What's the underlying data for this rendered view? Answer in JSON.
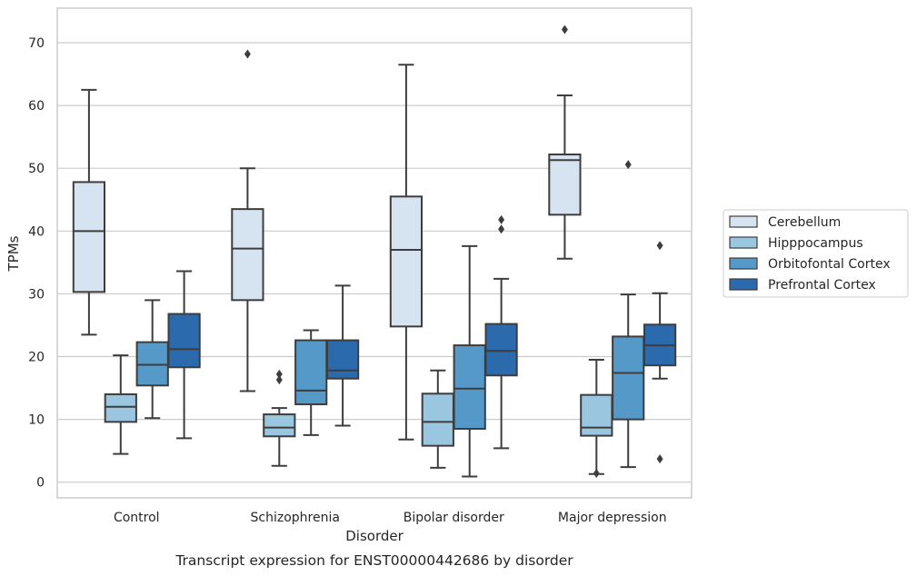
{
  "chart_data": {
    "type": "box",
    "caption": "Transcript expression for ENST00000442686 by disorder",
    "xlabel": "Disorder",
    "ylabel": "TPMs",
    "ylim": [
      -2.5,
      75.5
    ],
    "yticks": [
      0,
      10,
      20,
      30,
      40,
      50,
      60,
      70
    ],
    "grid": "horizontal",
    "legend_position": "right",
    "categories": [
      "Control",
      "Schizophrenia",
      "Bipolar disorder",
      "Major depression"
    ],
    "series": [
      {
        "name": "Cerebellum",
        "color": "#d6e4f2",
        "boxes": [
          {
            "whislo": 23.5,
            "q1": 30.3,
            "med": 40.0,
            "q3": 47.8,
            "whishi": 62.5,
            "fliers": []
          },
          {
            "whislo": 14.5,
            "q1": 29.0,
            "med": 37.2,
            "q3": 43.5,
            "whishi": 50.0,
            "fliers": [
              68.2
            ]
          },
          {
            "whislo": 6.8,
            "q1": 24.8,
            "med": 37.0,
            "q3": 45.5,
            "whishi": 66.5,
            "fliers": []
          },
          {
            "whislo": 35.6,
            "q1": 42.6,
            "med": 51.3,
            "q3": 52.2,
            "whishi": 61.6,
            "fliers": [
              72.1
            ]
          }
        ]
      },
      {
        "name": "Hipppocampus",
        "color": "#9ac6e0",
        "boxes": [
          {
            "whislo": 4.5,
            "q1": 9.6,
            "med": 12.0,
            "q3": 14.0,
            "whishi": 20.2,
            "fliers": []
          },
          {
            "whislo": 2.6,
            "q1": 7.3,
            "med": 8.7,
            "q3": 10.8,
            "whishi": 11.8,
            "fliers": [
              16.3,
              17.2
            ]
          },
          {
            "whislo": 2.3,
            "q1": 5.8,
            "med": 9.6,
            "q3": 14.1,
            "whishi": 17.8,
            "fliers": []
          },
          {
            "whislo": 1.3,
            "q1": 7.4,
            "med": 8.7,
            "q3": 13.9,
            "whishi": 19.5,
            "fliers": [
              1.4
            ]
          }
        ]
      },
      {
        "name": "Orbitofontal Cortex",
        "color": "#5599c9",
        "boxes": [
          {
            "whislo": 10.2,
            "q1": 15.4,
            "med": 18.7,
            "q3": 22.3,
            "whishi": 29.0,
            "fliers": []
          },
          {
            "whislo": 7.5,
            "q1": 12.4,
            "med": 14.6,
            "q3": 22.6,
            "whishi": 24.2,
            "fliers": []
          },
          {
            "whislo": 0.9,
            "q1": 8.5,
            "med": 14.9,
            "q3": 21.8,
            "whishi": 37.6,
            "fliers": []
          },
          {
            "whislo": 2.4,
            "q1": 10.0,
            "med": 17.4,
            "q3": 23.2,
            "whishi": 29.9,
            "fliers": [
              50.6
            ]
          }
        ]
      },
      {
        "name": "Prefrontal Cortex",
        "color": "#2b6aad",
        "boxes": [
          {
            "whislo": 7.0,
            "q1": 18.3,
            "med": 21.2,
            "q3": 26.8,
            "whishi": 33.6,
            "fliers": []
          },
          {
            "whislo": 9.0,
            "q1": 16.5,
            "med": 17.8,
            "q3": 22.6,
            "whishi": 31.3,
            "fliers": []
          },
          {
            "whislo": 5.4,
            "q1": 17.0,
            "med": 20.9,
            "q3": 25.2,
            "whishi": 32.4,
            "fliers": [
              40.3,
              41.8
            ]
          },
          {
            "whislo": 16.5,
            "q1": 18.6,
            "med": 21.8,
            "q3": 25.1,
            "whishi": 30.1,
            "fliers": [
              3.7,
              37.7
            ]
          }
        ]
      }
    ]
  }
}
